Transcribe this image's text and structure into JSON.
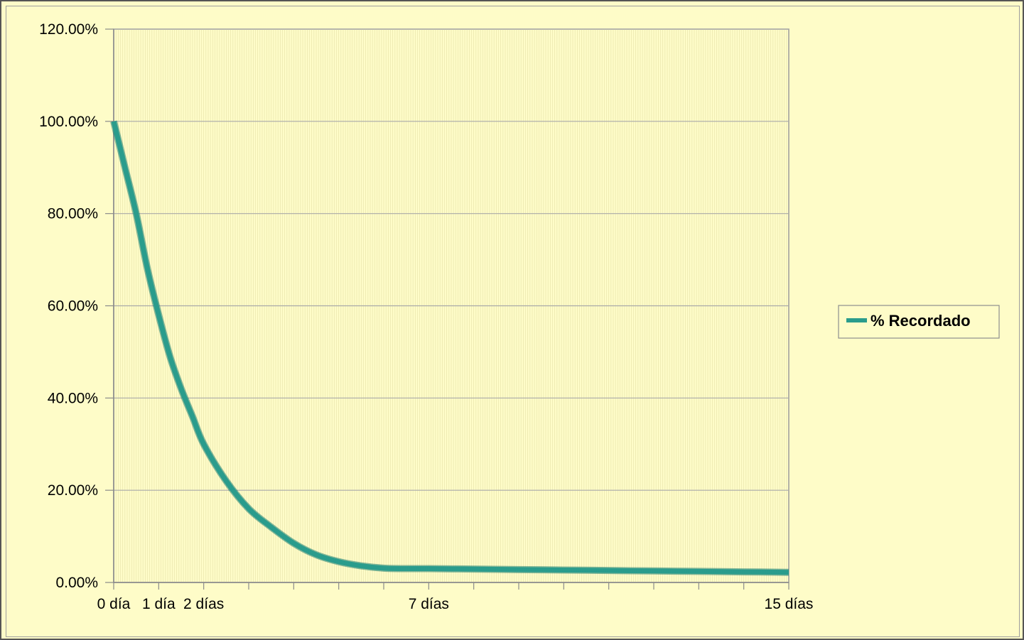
{
  "chart_data": {
    "type": "line",
    "title": "",
    "xlabel": "",
    "ylabel": "",
    "x_unit": "días",
    "xlim": [
      0,
      15
    ],
    "ylim": [
      0,
      120
    ],
    "y_tick_values": [
      0,
      20,
      40,
      60,
      80,
      100,
      120
    ],
    "y_tick_labels": [
      "0.00%",
      "20.00%",
      "40.00%",
      "60.00%",
      "80.00%",
      "100.00%",
      "120.00%"
    ],
    "x_ticks_labeled": [
      {
        "x": 0,
        "label": "0 día"
      },
      {
        "x": 1,
        "label": "1 día"
      },
      {
        "x": 2,
        "label": "2 días"
      },
      {
        "x": 7,
        "label": "7 días"
      },
      {
        "x": 15,
        "label": "15 días"
      }
    ],
    "x_ticks_all": [
      0,
      1,
      2,
      3,
      4,
      5,
      6,
      7,
      8,
      9,
      10,
      11,
      12,
      13,
      14,
      15
    ],
    "grid": {
      "horizontal": true,
      "vertical_minor": true
    },
    "legend_position": "right",
    "series": [
      {
        "name": "% Recordado",
        "color": "#2a9c8c",
        "x": [
          0,
          0.25,
          0.5,
          0.75,
          1,
          1.25,
          1.5,
          1.75,
          2,
          2.5,
          3,
          3.5,
          4,
          4.5,
          5,
          5.5,
          6,
          6.5,
          7,
          8,
          9,
          10,
          11,
          12,
          13,
          14,
          15
        ],
        "values": [
          100,
          90,
          80,
          68,
          58,
          49,
          42,
          36,
          30,
          22,
          16,
          12,
          8.5,
          6,
          4.5,
          3.6,
          3.1,
          3.0,
          3.0,
          2.9,
          2.8,
          2.7,
          2.6,
          2.5,
          2.4,
          2.3,
          2.2
        ]
      }
    ]
  }
}
